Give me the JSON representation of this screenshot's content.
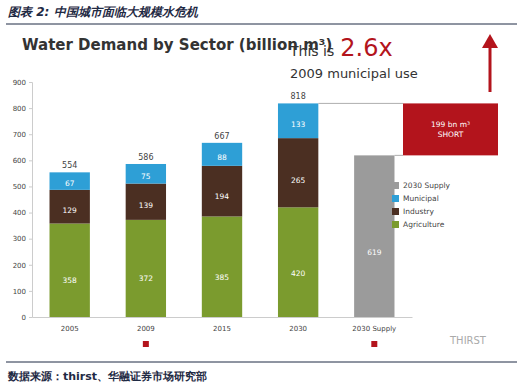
{
  "header": {
    "title": "图表 2: 中国城市面临大规模水危机"
  },
  "source": "数据来源：thirst、华融证券市场研究部",
  "watermark": "THIRST",
  "chart_data": {
    "type": "bar",
    "title": "Water Demand by Sector (billion m³)",
    "categories": [
      "2005",
      "2009",
      "2015",
      "2030",
      "2030 Supply"
    ],
    "stacked": true,
    "data_labels": true,
    "grid": false,
    "legend": "right",
    "series": [
      {
        "name": "Agriculture",
        "color": "#7b9b2e",
        "values": [
          358,
          372,
          385,
          420,
          null
        ]
      },
      {
        "name": "Industry",
        "color": "#4b2f22",
        "values": [
          129,
          139,
          194,
          265,
          null
        ]
      },
      {
        "name": "Municipal",
        "color": "#2e9fd6",
        "values": [
          67,
          75,
          88,
          133,
          null
        ]
      },
      {
        "name": "2030 Supply",
        "color": "#9b9b9b",
        "values": [
          null,
          null,
          null,
          null,
          619
        ]
      }
    ],
    "totals": [
      554,
      586,
      667,
      818,
      null
    ],
    "shortfall": {
      "value": 199,
      "label": [
        "199 bn m³",
        "SHORT"
      ],
      "color": "#b3141c"
    },
    "annotation": [
      "This is",
      "2.6x",
      "2009 municipal use"
    ],
    "ylim": [
      0,
      900
    ],
    "yticks": [
      0,
      100,
      200,
      300,
      400,
      500,
      600,
      700,
      800,
      900
    ]
  }
}
